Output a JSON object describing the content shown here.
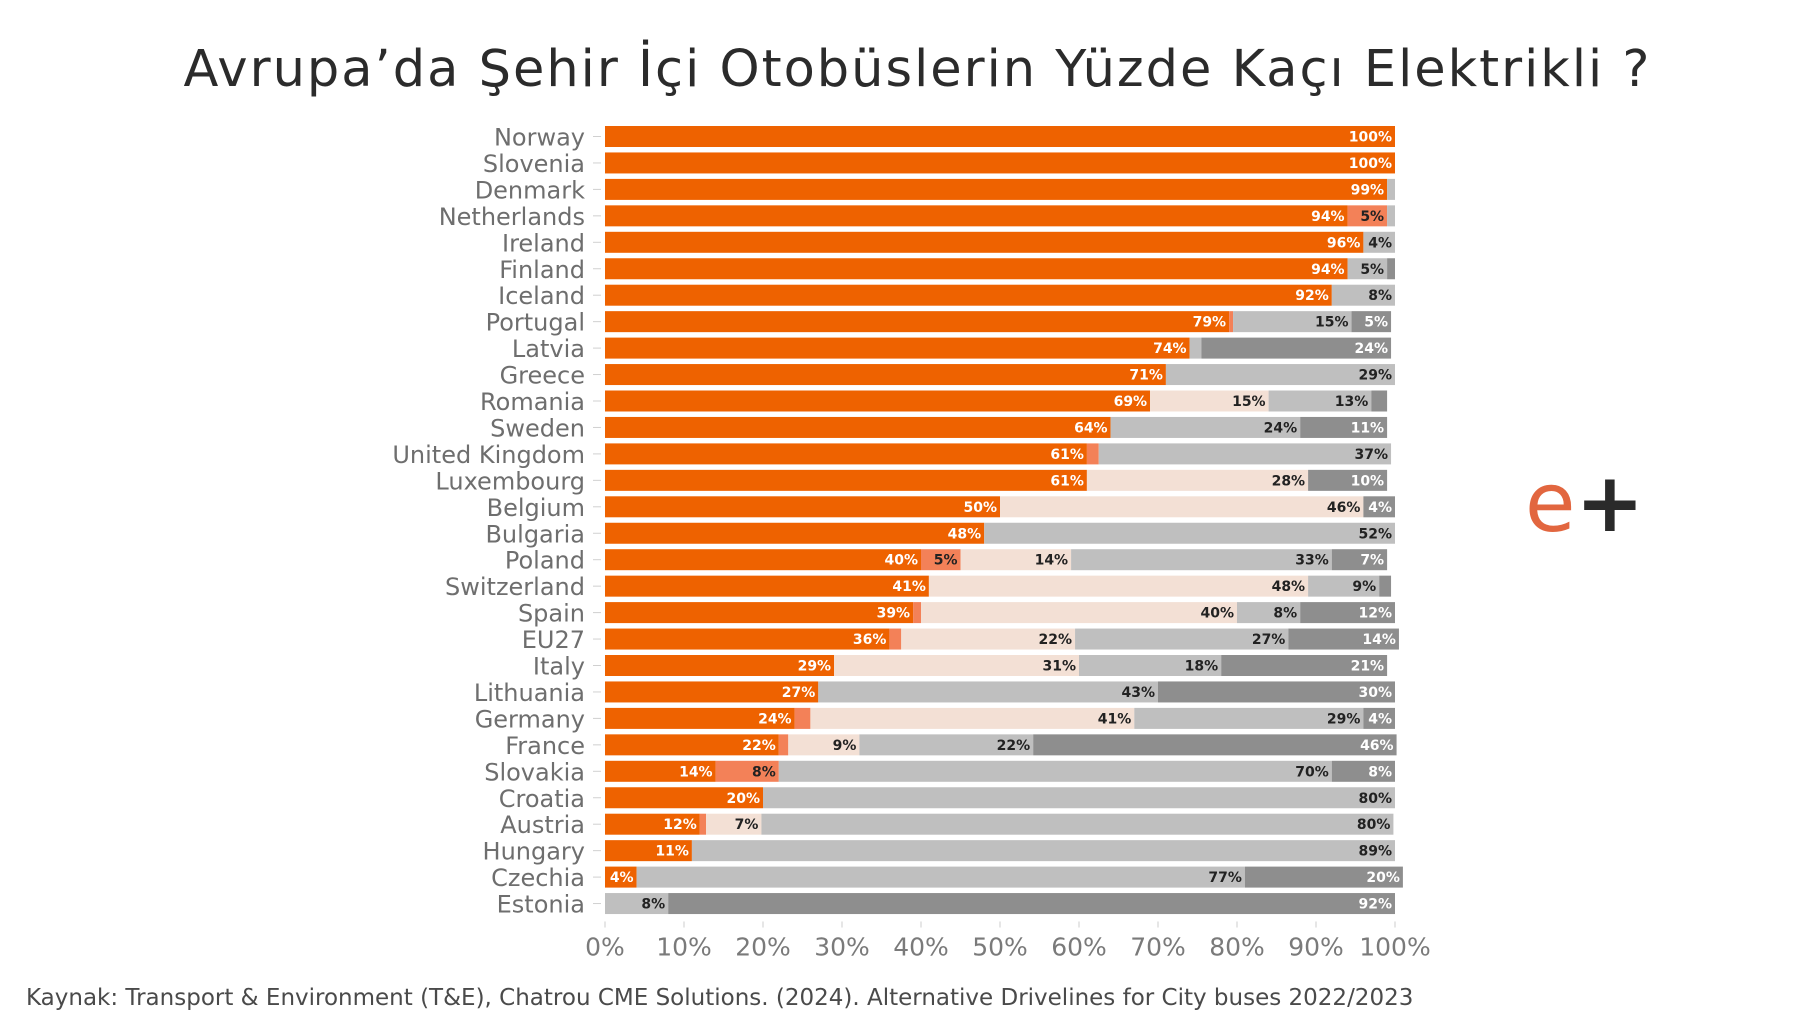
{
  "title": "Avrupa’da Şehir İçi Otobüslerin Yüzde Kaçı Elektrikli ?",
  "source": "Kaynak: Transport & Environment (T&E),  Chatrou CME Solutions. (2024). Alternative Drivelines for City buses 2022/2023",
  "logo": {
    "e": "e",
    "plus": "+"
  },
  "colors": {
    "seg1": "#ee6200",
    "seg2": "#f38158",
    "seg3": "#f3e0d5",
    "seg4": "#bfbfbf",
    "seg5": "#8e8e8e",
    "axis_text": "#7a7a7a",
    "label_text": "#6e6e6e"
  },
  "chart_data": {
    "type": "bar",
    "orientation": "horizontal",
    "stacked": true,
    "xlim": [
      0,
      100
    ],
    "xticks": [
      "0%",
      "10%",
      "20%",
      "30%",
      "40%",
      "50%",
      "60%",
      "70%",
      "80%",
      "90%",
      "100%"
    ],
    "categories": [
      "Norway",
      "Slovenia",
      "Denmark",
      "Netherlands",
      "Ireland",
      "Finland",
      "Iceland",
      "Portugal",
      "Latvia",
      "Greece",
      "Romania",
      "Sweden",
      "United Kingdom",
      "Luxembourg",
      "Belgium",
      "Bulgaria",
      "Poland",
      "Switzerland",
      "Spain",
      "EU27",
      "Italy",
      "Lithuania",
      "Germany",
      "France",
      "Slovakia",
      "Croatia",
      "Austria",
      "Hungary",
      "Czechia",
      "Estonia"
    ],
    "rows": [
      [
        100,
        0,
        0,
        0,
        0
      ],
      [
        100,
        0,
        0,
        0,
        0
      ],
      [
        99,
        0,
        0,
        1,
        0
      ],
      [
        94,
        5,
        0,
        1,
        0
      ],
      [
        96,
        0,
        0,
        4,
        0
      ],
      [
        94,
        0,
        0,
        5,
        1
      ],
      [
        92,
        0,
        0,
        8,
        0
      ],
      [
        79,
        0.5,
        0,
        15,
        5
      ],
      [
        74,
        0,
        0,
        1.5,
        24
      ],
      [
        71,
        0,
        0,
        29,
        0
      ],
      [
        69,
        0,
        15,
        13,
        2
      ],
      [
        64,
        0,
        0,
        24,
        11
      ],
      [
        61,
        1.5,
        0,
        37,
        0
      ],
      [
        61,
        0,
        28,
        0,
        10
      ],
      [
        50,
        0,
        46,
        0,
        4
      ],
      [
        48,
        0,
        0,
        52,
        0
      ],
      [
        40,
        5,
        14,
        33,
        7
      ],
      [
        41,
        0,
        48,
        9,
        1.5
      ],
      [
        39,
        1,
        40,
        8,
        12
      ],
      [
        36,
        1.5,
        22,
        27,
        14
      ],
      [
        29,
        0,
        31,
        18,
        21
      ],
      [
        27,
        0,
        0,
        43,
        30
      ],
      [
        24,
        2,
        41,
        29,
        4
      ],
      [
        22,
        1.2,
        9,
        22,
        46
      ],
      [
        14,
        8,
        0,
        70,
        8
      ],
      [
        20,
        0,
        0,
        80,
        0
      ],
      [
        12,
        0.8,
        7,
        80,
        0
      ],
      [
        11,
        0,
        0,
        89,
        0
      ],
      [
        4,
        0,
        0,
        77,
        20
      ],
      [
        0,
        0,
        0,
        8,
        92
      ]
    ],
    "labels": [
      [
        "100%",
        "",
        "",
        "",
        ""
      ],
      [
        "100%",
        "",
        "",
        "",
        ""
      ],
      [
        "99%",
        "",
        "",
        "",
        ""
      ],
      [
        "94%",
        "5%",
        "",
        "",
        ""
      ],
      [
        "96%",
        "",
        "",
        "4%",
        ""
      ],
      [
        "94%",
        "",
        "",
        "5%",
        ""
      ],
      [
        "92%",
        "",
        "",
        "8%",
        ""
      ],
      [
        "79%",
        "",
        "",
        "15%",
        "5%"
      ],
      [
        "74%",
        "",
        "",
        "",
        "24%"
      ],
      [
        "71%",
        "",
        "",
        "29%",
        ""
      ],
      [
        "69%",
        "",
        "15%",
        "13%",
        ""
      ],
      [
        "64%",
        "",
        "",
        "24%",
        "11%"
      ],
      [
        "61%",
        "",
        "",
        "37%",
        ""
      ],
      [
        "61%",
        "",
        "28%",
        "",
        "10%"
      ],
      [
        "50%",
        "",
        "46%",
        "",
        "4%"
      ],
      [
        "48%",
        "",
        "",
        "52%",
        ""
      ],
      [
        "40%",
        "5%",
        "14%",
        "33%",
        "7%"
      ],
      [
        "41%",
        "",
        "48%",
        "9%",
        ""
      ],
      [
        "39%",
        "",
        "40%",
        "8%",
        "12%"
      ],
      [
        "36%",
        "",
        "22%",
        "27%",
        "14%"
      ],
      [
        "29%",
        "",
        "31%",
        "18%",
        "21%"
      ],
      [
        "27%",
        "",
        "",
        "43%",
        "30%"
      ],
      [
        "24%",
        "",
        "41%",
        "29%",
        "4%"
      ],
      [
        "22%",
        "",
        "9%",
        "22%",
        "46%"
      ],
      [
        "14%",
        "8%",
        "",
        "70%",
        "8%"
      ],
      [
        "20%",
        "",
        "",
        "80%",
        ""
      ],
      [
        "12%",
        "",
        "7%",
        "80%",
        ""
      ],
      [
        "11%",
        "",
        "",
        "89%",
        ""
      ],
      [
        "4%",
        "",
        "",
        "77%",
        "20%"
      ],
      [
        "",
        "",
        "",
        "8%",
        "92%"
      ]
    ]
  }
}
